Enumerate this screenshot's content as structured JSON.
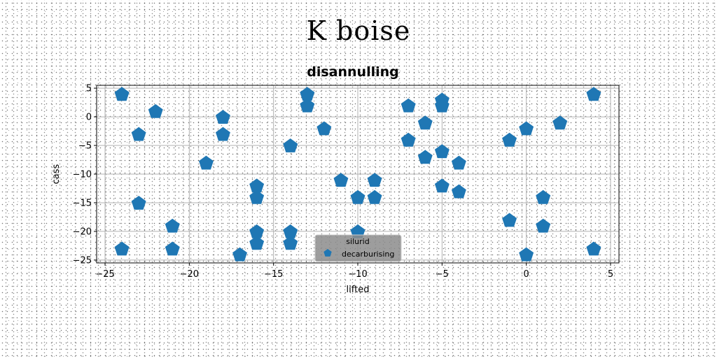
{
  "suptitle": "K boise",
  "chart_data": {
    "type": "scatter",
    "title": "disannulling",
    "xlabel": "lifted",
    "ylabel": "cass",
    "xlim": [
      -25.5,
      5.5
    ],
    "ylim": [
      -25.5,
      5.5
    ],
    "xticks": [
      -25,
      -20,
      -15,
      -10,
      -5,
      0,
      5
    ],
    "yticks": [
      5,
      0,
      -5,
      -10,
      -15,
      -20,
      -25
    ],
    "xtick_labels": [
      "−25",
      "−20",
      "−15",
      "−10",
      "−5",
      "0",
      "5"
    ],
    "ytick_labels": [
      "5",
      "0",
      "−5",
      "−10",
      "−15",
      "−20",
      "−25"
    ],
    "grid": true,
    "legend": {
      "title": "silurid",
      "placement": "lower center"
    },
    "series": [
      {
        "name": "decarburising",
        "color": "#1f77b4",
        "marker": "pentagon",
        "x": [
          -24,
          -24,
          -23,
          -23,
          -22,
          -21,
          -21,
          -19,
          -18,
          -18,
          -17,
          -16,
          -16,
          -16,
          -16,
          -14,
          -14,
          -14,
          -13,
          -13,
          -12,
          -11,
          -10,
          -10,
          -9,
          -9,
          -7,
          -7,
          -6,
          -6,
          -5,
          -5,
          -5,
          -5,
          -4,
          -4,
          -1,
          -1,
          0,
          0,
          1,
          1,
          2,
          4,
          4
        ],
        "y": [
          4,
          -23,
          -3,
          -15,
          1,
          -19,
          -23,
          -8,
          0,
          -3,
          -24,
          -12,
          -14,
          -20,
          -22,
          -5,
          -20,
          -22,
          4,
          2,
          -2,
          -11,
          -14,
          -20,
          -11,
          -14,
          2,
          -4,
          -1,
          -7,
          3,
          2,
          -6,
          -12,
          -8,
          -13,
          -4,
          -18,
          -2,
          -24,
          -14,
          -19,
          -1,
          4,
          -23
        ]
      }
    ]
  }
}
